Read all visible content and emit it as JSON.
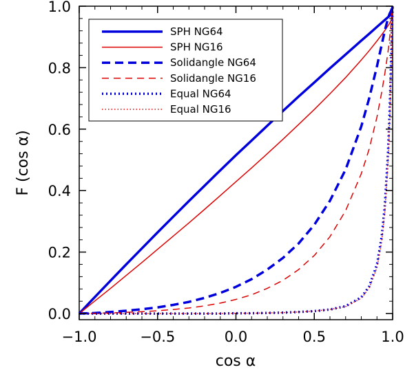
{
  "chart_data": {
    "type": "line",
    "xlabel": "cos α",
    "ylabel": "F (cos α)",
    "xlim": [
      -1.0,
      1.0
    ],
    "ylim": [
      -0.02,
      1.0
    ],
    "x_ticks": [
      "−1.0",
      "−0.5",
      "0.0",
      "0.5",
      "1.0"
    ],
    "x_tick_values": [
      -1.0,
      -0.5,
      0.0,
      0.5,
      1.0
    ],
    "y_ticks": [
      "0.0",
      "0.2",
      "0.4",
      "0.6",
      "0.8",
      "1.0"
    ],
    "y_tick_values": [
      0.0,
      0.2,
      0.4,
      0.6,
      0.8,
      1.0
    ],
    "legend_position": "top-left",
    "x": [
      -1.0,
      -0.9,
      -0.8,
      -0.7,
      -0.6,
      -0.5,
      -0.4,
      -0.3,
      -0.2,
      -0.1,
      0.0,
      0.1,
      0.2,
      0.3,
      0.4,
      0.5,
      0.6,
      0.7,
      0.8,
      0.85,
      0.9,
      0.93,
      0.95,
      0.97,
      0.98,
      0.99,
      1.0
    ],
    "series": [
      {
        "name": "SPH NG64",
        "color": "#0000dd",
        "style": "solid",
        "width": "thick",
        "values": [
          0.0,
          0.054,
          0.107,
          0.16,
          0.212,
          0.264,
          0.315,
          0.366,
          0.416,
          0.466,
          0.515,
          0.563,
          0.611,
          0.659,
          0.706,
          0.752,
          0.798,
          0.843,
          0.888,
          0.91,
          0.933,
          0.946,
          0.955,
          0.964,
          0.969,
          0.973,
          1.0
        ]
      },
      {
        "name": "SPH NG16",
        "color": "#dd0000",
        "style": "solid",
        "width": "thin",
        "values": [
          0.0,
          0.041,
          0.082,
          0.124,
          0.166,
          0.209,
          0.252,
          0.295,
          0.339,
          0.384,
          0.429,
          0.474,
          0.52,
          0.567,
          0.615,
          0.664,
          0.715,
          0.768,
          0.825,
          0.855,
          0.887,
          0.907,
          0.921,
          0.936,
          0.944,
          0.953,
          1.0
        ]
      },
      {
        "name": "Solidangle NG64",
        "color": "#0000dd",
        "style": "dashed",
        "width": "thick",
        "values": [
          0.0,
          0.002,
          0.005,
          0.009,
          0.014,
          0.02,
          0.028,
          0.038,
          0.051,
          0.067,
          0.087,
          0.112,
          0.143,
          0.181,
          0.228,
          0.289,
          0.367,
          0.469,
          0.609,
          0.7,
          0.805,
          0.875,
          0.92,
          0.96,
          0.975,
          0.985,
          1.0
        ]
      },
      {
        "name": "Solidangle NG16",
        "color": "#dd0000",
        "style": "dashed",
        "width": "thin",
        "values": [
          0.0,
          0.001,
          0.002,
          0.004,
          0.006,
          0.009,
          0.013,
          0.018,
          0.025,
          0.034,
          0.046,
          0.061,
          0.082,
          0.108,
          0.143,
          0.189,
          0.25,
          0.335,
          0.455,
          0.535,
          0.64,
          0.72,
          0.78,
          0.85,
          0.895,
          0.94,
          1.0
        ]
      },
      {
        "name": "Equal NG64",
        "color": "#0000dd",
        "style": "dotted",
        "width": "thick",
        "values": [
          0.0,
          0.0,
          0.0,
          0.0,
          0.0,
          0.0,
          0.0,
          0.0,
          0.0,
          0.0,
          0.001,
          0.001,
          0.002,
          0.003,
          0.005,
          0.008,
          0.013,
          0.024,
          0.053,
          0.088,
          0.16,
          0.25,
          0.35,
          0.52,
          0.65,
          0.82,
          1.0
        ]
      },
      {
        "name": "Equal NG16",
        "color": "#dd0000",
        "style": "dotted",
        "width": "thin",
        "values": [
          0.0,
          0.0,
          0.0,
          0.0,
          0.0,
          0.0,
          0.0,
          0.0,
          0.0,
          0.0,
          0.001,
          0.001,
          0.002,
          0.003,
          0.005,
          0.008,
          0.013,
          0.023,
          0.05,
          0.083,
          0.15,
          0.235,
          0.33,
          0.49,
          0.62,
          0.79,
          1.0
        ]
      }
    ]
  }
}
